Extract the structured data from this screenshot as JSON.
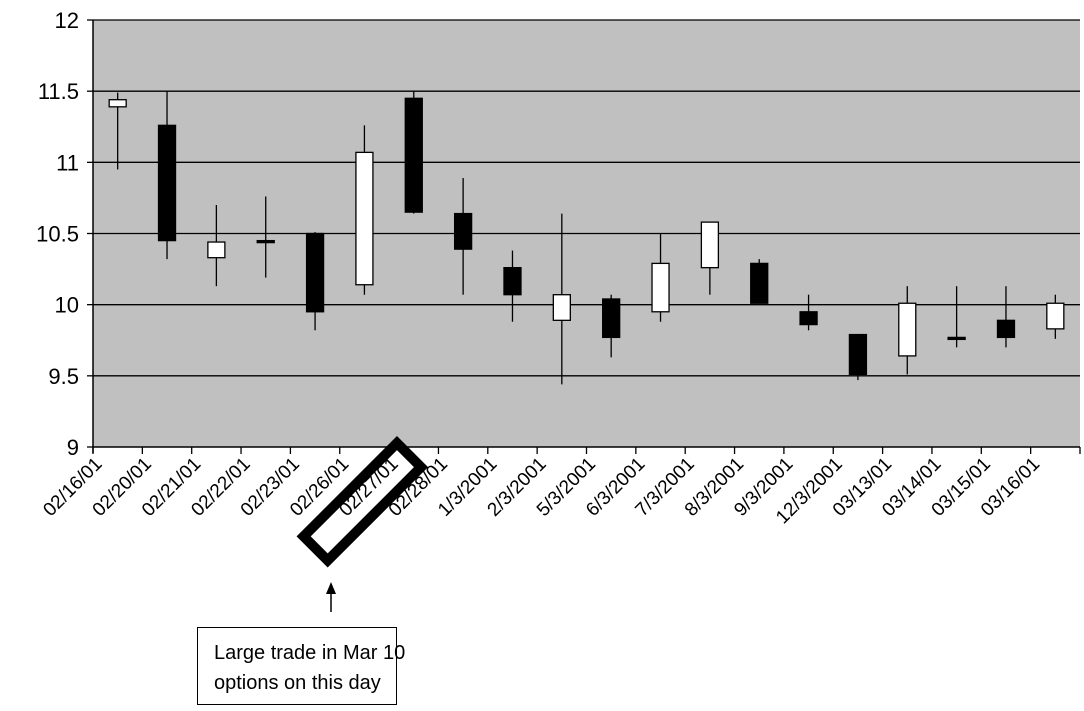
{
  "chart_data": {
    "type": "candlestick",
    "title": "",
    "xlabel": "",
    "ylabel": "",
    "ylim": [
      9,
      12
    ],
    "y_ticks": [
      "9",
      "9.5",
      "10",
      "10.5",
      "11",
      "11.5",
      "12"
    ],
    "grid": true,
    "legend": "none",
    "colors": {
      "plot_background": "#c0c0c0",
      "up": "#ffffff",
      "down": "#000000",
      "grid": "#000000"
    },
    "categories": [
      "02/16/01",
      "02/20/01",
      "02/21/01",
      "02/22/01",
      "02/23/01",
      "02/26/01",
      "02/27/01",
      "02/28/01",
      "1/3/2001",
      "2/3/2001",
      "5/3/2001",
      "6/3/2001",
      "7/3/2001",
      "8/3/2001",
      "9/3/2001",
      "12/3/2001",
      "03/13/01",
      "03/14/01",
      "03/15/01",
      "03/16/01"
    ],
    "ohlc": [
      {
        "open": 11.39,
        "high": 11.49,
        "low": 10.95,
        "close": 11.44
      },
      {
        "open": 11.26,
        "high": 11.5,
        "low": 10.32,
        "close": 10.45
      },
      {
        "open": 10.33,
        "high": 10.7,
        "low": 10.13,
        "close": 10.44
      },
      {
        "open": 10.45,
        "high": 10.76,
        "low": 10.19,
        "close": 10.44
      },
      {
        "open": 10.5,
        "high": 10.51,
        "low": 9.82,
        "close": 9.95
      },
      {
        "open": 10.14,
        "high": 11.26,
        "low": 10.07,
        "close": 11.07
      },
      {
        "open": 11.45,
        "high": 11.5,
        "low": 10.64,
        "close": 10.65
      },
      {
        "open": 10.64,
        "high": 10.89,
        "low": 10.07,
        "close": 10.39
      },
      {
        "open": 10.26,
        "high": 10.38,
        "low": 9.88,
        "close": 10.07
      },
      {
        "open": 9.89,
        "high": 10.64,
        "low": 9.44,
        "close": 10.07
      },
      {
        "open": 10.04,
        "high": 10.07,
        "low": 9.63,
        "close": 9.77
      },
      {
        "open": 9.95,
        "high": 10.5,
        "low": 9.88,
        "close": 10.29
      },
      {
        "open": 10.26,
        "high": 10.58,
        "low": 10.07,
        "close": 10.58
      },
      {
        "open": 10.29,
        "high": 10.32,
        "low": 10.01,
        "close": 10.01
      },
      {
        "open": 9.95,
        "high": 10.07,
        "low": 9.82,
        "close": 9.86
      },
      {
        "open": 9.79,
        "high": 9.79,
        "low": 9.47,
        "close": 9.51
      },
      {
        "open": 9.64,
        "high": 10.13,
        "low": 9.51,
        "close": 10.01
      },
      {
        "open": 9.77,
        "high": 10.13,
        "low": 9.7,
        "close": 9.76
      },
      {
        "open": 9.89,
        "high": 10.13,
        "low": 9.7,
        "close": 9.77
      },
      {
        "open": 9.83,
        "high": 10.07,
        "low": 9.76,
        "close": 10.01
      }
    ],
    "highlighted_category": "02/27/01",
    "annotation": {
      "lines": [
        "Large trade in Mar 10",
        "options on this day"
      ]
    }
  }
}
